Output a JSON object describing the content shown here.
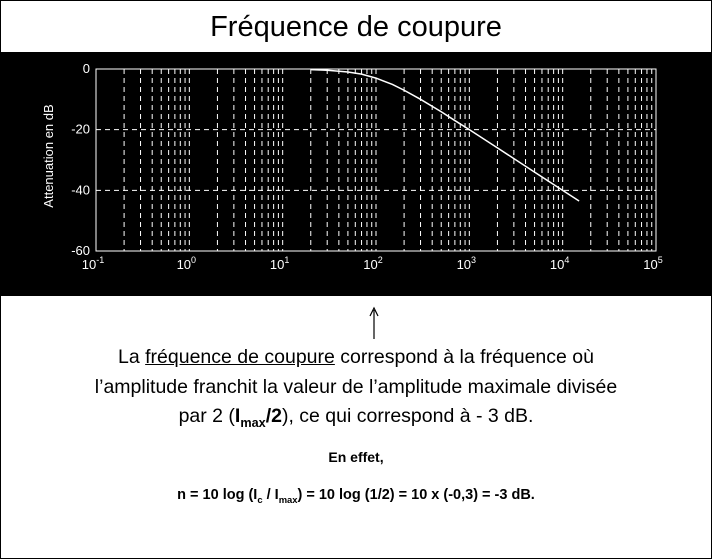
{
  "chart_data": {
    "type": "line",
    "title": "Fréquence de coupure",
    "ylabel": "Attenuation en dB",
    "log_x": true,
    "grid": true,
    "minor_grid": true,
    "background": "#000000",
    "color": "#ffffff",
    "xlim": [
      0.1,
      100000
    ],
    "ylim": [
      -60,
      0
    ],
    "xticks": [
      {
        "value": 0.1,
        "label": "10",
        "exponent": "-1"
      },
      {
        "value": 1,
        "label": "10",
        "exponent": "0"
      },
      {
        "value": 10,
        "label": "10",
        "exponent": "1"
      },
      {
        "value": 100,
        "label": "10",
        "exponent": "2"
      },
      {
        "value": 1000,
        "label": "10",
        "exponent": "3"
      },
      {
        "value": 10000,
        "label": "10",
        "exponent": "4"
      },
      {
        "value": 100000,
        "label": "10",
        "exponent": "5"
      }
    ],
    "yticks": [
      0,
      -20,
      -40,
      -60
    ],
    "x": [
      20,
      30,
      50,
      70,
      100,
      150,
      200,
      300,
      500,
      700,
      1000,
      2000,
      5000,
      10000,
      15000
    ],
    "series": [
      {
        "name": "Attenuation",
        "color": "#ffffff",
        "values": [
          -0.2,
          -0.4,
          -1,
          -1.7,
          -3,
          -5.1,
          -7,
          -10,
          -14.1,
          -17,
          -20,
          -26,
          -34,
          -40,
          -43.5
        ]
      }
    ]
  },
  "text": {
    "line1": [
      "La ",
      "fréquence de coupure",
      " correspond à la fréquence où"
    ],
    "line2": "l’amplitude franchit la valeur de l’amplitude maximale divisée",
    "line3": [
      "par 2 (",
      "I",
      "max",
      "/2",
      "), ce qui correspond à - 3 dB."
    ],
    "effet": "En effet,",
    "formula": [
      "n = 10 log (I",
      "c",
      " / I",
      "max",
      ") = 10 log (1/2) = 10 x (-0,3) = -3 dB."
    ]
  }
}
